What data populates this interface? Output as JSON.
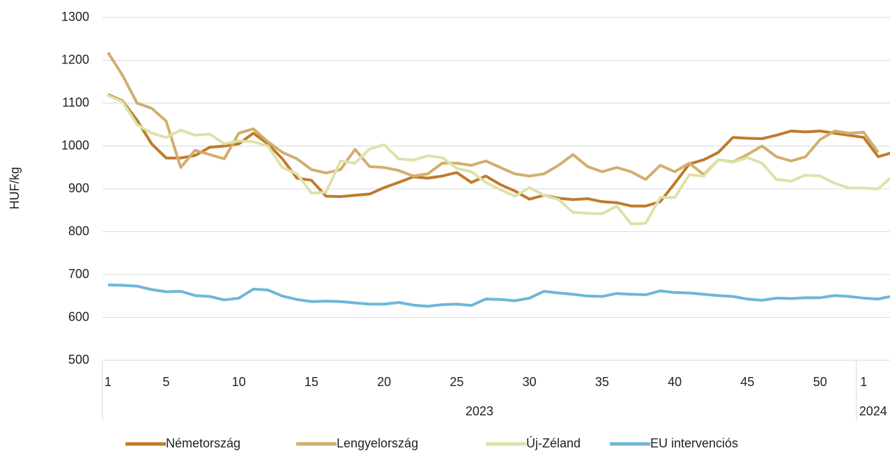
{
  "chart_data": {
    "type": "line",
    "y_label": "HUF/kg",
    "categories": [
      "1",
      null,
      null,
      null,
      "5",
      null,
      null,
      null,
      null,
      "10",
      null,
      null,
      null,
      null,
      "15",
      null,
      null,
      null,
      null,
      "20",
      null,
      null,
      null,
      null,
      "25",
      null,
      null,
      null,
      null,
      "30",
      null,
      null,
      null,
      null,
      "35",
      null,
      null,
      null,
      null,
      "40",
      null,
      null,
      null,
      null,
      "45",
      null,
      null,
      null,
      null,
      "50",
      null,
      null,
      "1",
      null,
      null
    ],
    "groups": [
      {
        "name": "2023",
        "count": 52
      },
      {
        "name": "2024",
        "count": 3
      }
    ],
    "series": [
      {
        "name": "Németország",
        "color": "#c07a2c",
        "values": [
          1120,
          1105,
          1060,
          1005,
          972,
          972,
          978,
          997,
          1000,
          1005,
          1030,
          1005,
          970,
          925,
          920,
          883,
          882,
          885,
          888,
          903,
          915,
          928,
          925,
          930,
          938,
          915,
          930,
          910,
          895,
          876,
          885,
          878,
          875,
          877,
          870,
          868,
          860,
          860,
          870,
          913,
          958,
          968,
          985,
          1020,
          1018,
          1017,
          1025,
          1035,
          1033,
          1035,
          1030,
          1025,
          1020,
          975,
          985
        ]
      },
      {
        "name": "Lengyelország",
        "color": "#d2ae6d",
        "values": [
          1218,
          1165,
          1100,
          1088,
          1058,
          950,
          990,
          980,
          970,
          1030,
          1040,
          1010,
          985,
          970,
          945,
          937,
          945,
          992,
          952,
          950,
          943,
          930,
          935,
          960,
          960,
          955,
          965,
          950,
          935,
          930,
          935,
          955,
          980,
          952,
          940,
          950,
          940,
          922,
          955,
          940,
          960,
          933,
          968,
          963,
          980,
          1000,
          975,
          965,
          975,
          1015,
          1035,
          1030,
          1032,
          985,
          null
        ]
      },
      {
        "name": "Új-Zéland",
        "color": "#dde2aa",
        "values": [
          1118,
          1103,
          1050,
          1030,
          1020,
          1037,
          1025,
          1028,
          1005,
          1012,
          1010,
          1000,
          950,
          935,
          890,
          892,
          965,
          960,
          993,
          1003,
          970,
          967,
          977,
          973,
          948,
          940,
          915,
          898,
          883,
          903,
          885,
          875,
          845,
          843,
          842,
          860,
          818,
          820,
          880,
          880,
          933,
          930,
          968,
          962,
          973,
          960,
          922,
          918,
          932,
          930,
          913,
          902,
          902,
          900,
          930
        ]
      },
      {
        "name": "EU intervenciós",
        "color": "#6fb6d8",
        "values": [
          676,
          675,
          673,
          665,
          660,
          661,
          651,
          649,
          641,
          645,
          666,
          664,
          650,
          642,
          637,
          638,
          637,
          634,
          631,
          631,
          635,
          629,
          626,
          630,
          631,
          628,
          643,
          642,
          639,
          645,
          661,
          657,
          654,
          650,
          649,
          656,
          654,
          653,
          662,
          658,
          657,
          654,
          651,
          649,
          643,
          640,
          645,
          644,
          646,
          646,
          651,
          649,
          645,
          643,
          650
        ]
      }
    ],
    "ylim": [
      500,
      1300
    ],
    "yticks": [
      500,
      600,
      700,
      800,
      900,
      1000,
      1100,
      1200,
      1300
    ],
    "grid": true
  }
}
